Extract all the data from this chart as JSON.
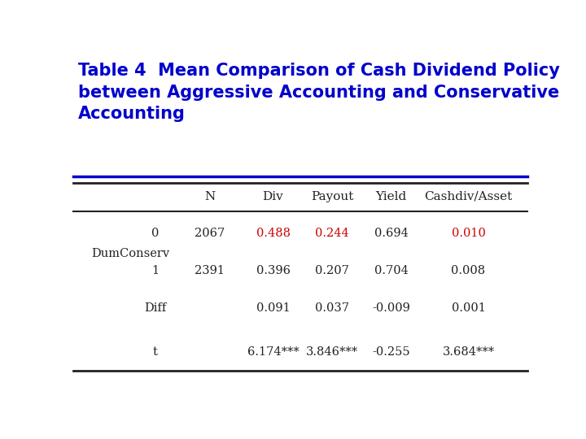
{
  "title_line1": "Table 4  Mean Comparison of Cash Dividend Policy",
  "title_line2": "between Aggressive Accounting and Conservative",
  "title_line3": "Accounting",
  "title_color": "#0000CC",
  "title_fontsize": 15,
  "header": [
    "N",
    "Div",
    "Payout",
    "Yield",
    "Cashdiv/Asset"
  ],
  "row_label_group": "DumConserv",
  "rows": [
    {
      "label1": "",
      "label2": "0",
      "N": "2067",
      "Div": "0.488",
      "Payout": "0.244",
      "Yield": "0.694",
      "Cashdiv": "0.010"
    },
    {
      "label1": "DumConserv",
      "label2": "1",
      "N": "2391",
      "Div": "0.396",
      "Payout": "0.207",
      "Yield": "0.704",
      "Cashdiv": "0.008"
    },
    {
      "label1": "",
      "label2": "Diff",
      "N": "",
      "Div": "0.091",
      "Payout": "0.037",
      "Yield": "-0.009",
      "Cashdiv": "0.001"
    },
    {
      "label1": "",
      "label2": "t",
      "N": "",
      "Div": "6.174***",
      "Payout": "3.846***",
      "Yield": "-0.255",
      "Cashdiv": "3.684***"
    }
  ],
  "red_cells": [
    [
      0,
      "Div"
    ],
    [
      0,
      "Payout"
    ],
    [
      0,
      "Cashdiv"
    ]
  ],
  "background_color": "#ffffff",
  "separator_color": "#333333",
  "blue_line_color": "#0000CC"
}
